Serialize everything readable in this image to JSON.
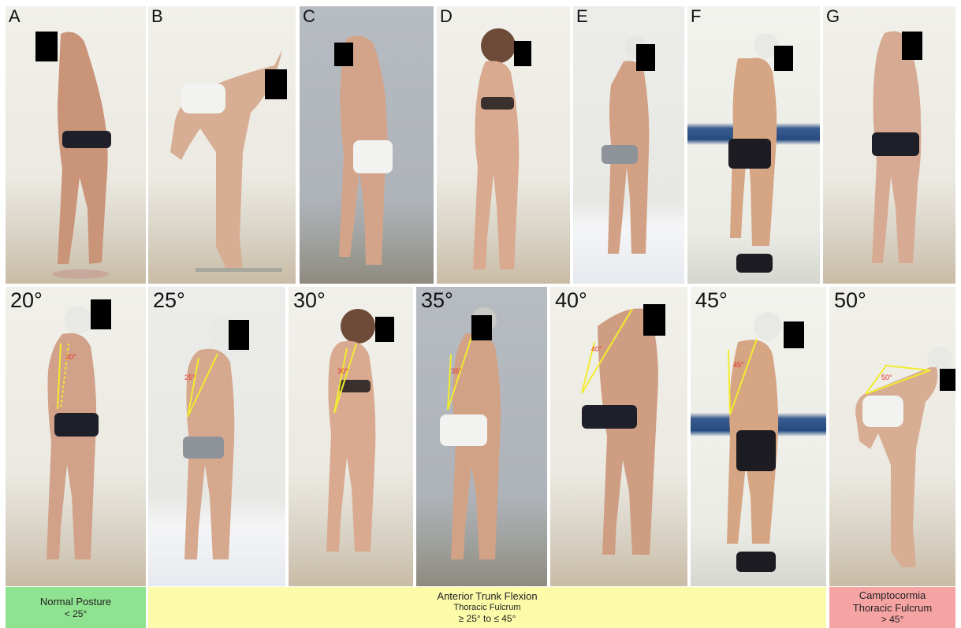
{
  "top_panels": [
    {
      "label": "A"
    },
    {
      "label": "B"
    },
    {
      "label": "C"
    },
    {
      "label": "D"
    },
    {
      "label": "E"
    },
    {
      "label": "F"
    },
    {
      "label": "G"
    }
  ],
  "bottom_panels": [
    {
      "angle": "20°"
    },
    {
      "angle": "25°"
    },
    {
      "angle": "30°"
    },
    {
      "angle": "35°"
    },
    {
      "angle": "40°"
    },
    {
      "angle": "45°"
    },
    {
      "angle": "50°"
    }
  ],
  "categories": {
    "normal": {
      "line1": "Normal Posture",
      "line2": "< 25°",
      "color": "#8fe28f"
    },
    "atf": {
      "line1": "Anterior Trunk Flexion",
      "line2": "Thoracic Fulcrum",
      "line3": "≥ 25° to ≤ 45°",
      "color": "#fbfbaa"
    },
    "camptocormia": {
      "line1": "Camptocormia",
      "line2": "Thoracic Fulcrum",
      "line3": "> 45°",
      "color": "#f6a3a3"
    }
  },
  "colors": {
    "skin": "#d6a98c",
    "underwear_dark": "#1f1f2a",
    "underwear_white": "#f2f2f0",
    "underwear_grey": "#8e9399",
    "annotation_yellow": "#f2ec30",
    "annotation_red": "#e0322a"
  }
}
